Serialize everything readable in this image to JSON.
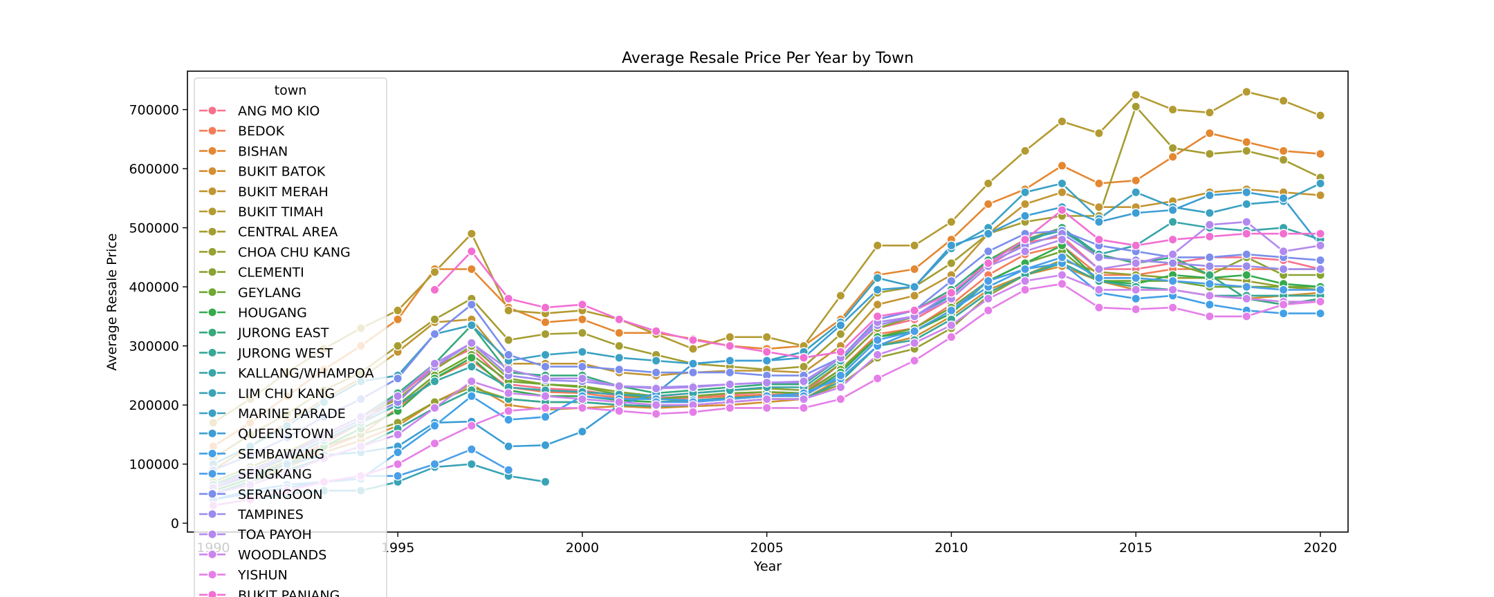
{
  "chart_data": {
    "type": "line",
    "title": "Average Resale Price Per Year by Town",
    "xlabel": "Year",
    "ylabel": "Average Resale Price",
    "xlim": [
      1989.3,
      2020.75
    ],
    "ylim": [
      -15000,
      765000
    ],
    "x_ticks": [
      1990,
      1995,
      2000,
      2005,
      2010,
      2015,
      2020
    ],
    "x_tick_labels": [
      "1990",
      "1995",
      "2000",
      "2005",
      "2010",
      "2015",
      "2020"
    ],
    "y_ticks": [
      0,
      100000,
      200000,
      300000,
      400000,
      500000,
      600000,
      700000
    ],
    "y_tick_labels": [
      "0",
      "100000",
      "200000",
      "300000",
      "400000",
      "500000",
      "600000",
      "700000"
    ],
    "grid": false,
    "legend": {
      "title": "town",
      "placement": "upper-left"
    },
    "x": [
      1990,
      1991,
      1992,
      1993,
      1994,
      1995,
      1996,
      1997,
      1998,
      1999,
      2000,
      2001,
      2002,
      2003,
      2004,
      2005,
      2006,
      2007,
      2008,
      2009,
      2010,
      2011,
      2012,
      2013,
      2014,
      2015,
      2016,
      2017,
      2018,
      2019,
      2020
    ],
    "series": [
      {
        "name": "ANG MO KIO",
        "color": "#f77189",
        "values": [
          60000,
          80000,
          105000,
          135000,
          170000,
          215000,
          265000,
          295000,
          235000,
          228000,
          225000,
          215000,
          212000,
          215000,
          218000,
          222000,
          220000,
          270000,
          330000,
          345000,
          380000,
          435000,
          475000,
          485000,
          430000,
          430000,
          440000,
          450000,
          450000,
          445000,
          430000
        ]
      },
      {
        "name": "BEDOK",
        "color": "#f37c57",
        "values": [
          55000,
          75000,
          100000,
          125000,
          150000,
          195000,
          245000,
          275000,
          230000,
          222000,
          220000,
          212000,
          210000,
          212000,
          215000,
          218000,
          218000,
          260000,
          320000,
          330000,
          370000,
          420000,
          455000,
          470000,
          420000,
          420000,
          430000,
          430000,
          430000,
          430000,
          430000
        ]
      },
      {
        "name": "BISHAN",
        "color": "#e48731",
        "values": [
          130000,
          170000,
          215000,
          260000,
          300000,
          345000,
          430000,
          430000,
          365000,
          340000,
          345000,
          322000,
          322000,
          312000,
          300000,
          295000,
          300000,
          345000,
          420000,
          430000,
          480000,
          540000,
          565000,
          605000,
          575000,
          580000,
          620000,
          660000,
          645000,
          630000,
          625000
        ]
      },
      {
        "name": "BUKIT BATOK",
        "color": "#d28f32",
        "values": [
          50000,
          70000,
          95000,
          120000,
          140000,
          165000,
          205000,
          235000,
          200000,
          192000,
          195000,
          198000,
          195000,
          198000,
          200000,
          205000,
          210000,
          245000,
          300000,
          315000,
          350000,
          395000,
          420000,
          435000,
          410000,
          395000,
          395000,
          385000,
          380000,
          385000,
          390000
        ]
      },
      {
        "name": "BUKIT MERAH",
        "color": "#c19532",
        "values": [
          90000,
          130000,
          170000,
          210000,
          245000,
          290000,
          340000,
          345000,
          270000,
          270000,
          270000,
          255000,
          250000,
          255000,
          258000,
          258000,
          255000,
          300000,
          370000,
          385000,
          420000,
          490000,
          540000,
          560000,
          535000,
          535000,
          545000,
          560000,
          565000,
          560000,
          555000
        ]
      },
      {
        "name": "BUKIT TIMAH",
        "color": "#b39a31",
        "values": [
          170000,
          210000,
          255000,
          295000,
          330000,
          360000,
          425000,
          490000,
          360000,
          355000,
          360000,
          345000,
          320000,
          295000,
          315000,
          315000,
          300000,
          385000,
          470000,
          470000,
          510000,
          575000,
          630000,
          680000,
          660000,
          725000,
          700000,
          695000,
          730000,
          715000,
          690000
        ]
      },
      {
        "name": "CENTRAL AREA",
        "color": "#a59d31",
        "values": [
          110000,
          150000,
          185000,
          225000,
          255000,
          300000,
          345000,
          380000,
          310000,
          320000,
          322000,
          300000,
          285000,
          270000,
          265000,
          260000,
          265000,
          320000,
          390000,
          400000,
          440000,
          490000,
          510000,
          520000,
          520000,
          705000,
          635000,
          625000,
          630000,
          615000,
          585000
        ]
      },
      {
        "name": "CHOA CHU KANG",
        "color": "#97a031",
        "values": [
          60000,
          80000,
          105000,
          130000,
          150000,
          170000,
          205000,
          230000,
          210000,
          205000,
          205000,
          200000,
          198000,
          200000,
          205000,
          210000,
          210000,
          235000,
          280000,
          295000,
          330000,
          385000,
          420000,
          445000,
          425000,
          420000,
          415000,
          415000,
          410000,
          400000,
          395000
        ]
      },
      {
        "name": "CLEMENTI",
        "color": "#88a331",
        "values": [
          70000,
          95000,
          120000,
          150000,
          180000,
          210000,
          260000,
          300000,
          245000,
          235000,
          232000,
          222000,
          215000,
          220000,
          225000,
          228000,
          225000,
          270000,
          330000,
          350000,
          385000,
          445000,
          480000,
          500000,
          450000,
          445000,
          440000,
          420000,
          450000,
          420000,
          420000
        ]
      },
      {
        "name": "GEYLANG",
        "color": "#6fa731",
        "values": [
          60000,
          85000,
          110000,
          140000,
          170000,
          200000,
          250000,
          285000,
          240000,
          235000,
          230000,
          218000,
          210000,
          215000,
          220000,
          222000,
          220000,
          260000,
          315000,
          330000,
          365000,
          410000,
          440000,
          460000,
          410000,
          410000,
          410000,
          400000,
          400000,
          400000,
          400000
        ]
      },
      {
        "name": "HOUGANG",
        "color": "#35ab4e",
        "values": [
          55000,
          75000,
          100000,
          130000,
          160000,
          190000,
          245000,
          280000,
          225000,
          215000,
          215000,
          208000,
          205000,
          208000,
          212000,
          215000,
          215000,
          255000,
          315000,
          325000,
          355000,
          410000,
          440000,
          470000,
          410000,
          405000,
          420000,
          415000,
          420000,
          405000,
          400000
        ]
      },
      {
        "name": "JURONG EAST",
        "color": "#36a97c",
        "values": [
          65000,
          90000,
          115000,
          150000,
          180000,
          220000,
          270000,
          335000,
          255000,
          250000,
          250000,
          232000,
          220000,
          225000,
          230000,
          235000,
          235000,
          280000,
          345000,
          360000,
          395000,
          445000,
          475000,
          500000,
          455000,
          440000,
          450000,
          420000,
          380000,
          370000,
          380000
        ]
      },
      {
        "name": "JURONG WEST",
        "color": "#37a798",
        "values": [
          50000,
          70000,
          90000,
          110000,
          130000,
          160000,
          195000,
          225000,
          210000,
          205000,
          205000,
          200000,
          198000,
          200000,
          205000,
          210000,
          210000,
          240000,
          300000,
          310000,
          345000,
          390000,
          420000,
          440000,
          410000,
          400000,
          395000,
          385000,
          385000,
          385000,
          385000
        ]
      },
      {
        "name": "KALLANG/WHAMPOA",
        "color": "#38a5aa",
        "values": [
          60000,
          85000,
          110000,
          140000,
          170000,
          200000,
          240000,
          265000,
          230000,
          225000,
          222000,
          218000,
          215000,
          220000,
          225000,
          230000,
          230000,
          275000,
          340000,
          350000,
          385000,
          440000,
          480000,
          495000,
          455000,
          470000,
          510000,
          500000,
          495000,
          500000,
          480000
        ]
      },
      {
        "name": "LIM CHU KANG",
        "color": "#39a3b7",
        "values": [
          30000,
          40000,
          50000,
          55000,
          55000,
          70000,
          95000,
          100000,
          80000,
          70000,
          null,
          null,
          null,
          null,
          null,
          null,
          null,
          null,
          null,
          null,
          null,
          null,
          null,
          null,
          null,
          null,
          null,
          null,
          null,
          null,
          null
        ]
      },
      {
        "name": "MARINE PARADE",
        "color": "#3aa1c3",
        "values": [
          100000,
          130000,
          165000,
          205000,
          240000,
          250000,
          320000,
          335000,
          275000,
          285000,
          290000,
          280000,
          275000,
          270000,
          275000,
          275000,
          290000,
          340000,
          415000,
          400000,
          465000,
          500000,
          560000,
          575000,
          515000,
          560000,
          535000,
          525000,
          540000,
          545000,
          575000
        ]
      },
      {
        "name": "QUEENSTOWN",
        "color": "#3c9ed3",
        "values": [
          60000,
          80000,
          100000,
          115000,
          120000,
          130000,
          170000,
          172000,
          130000,
          132000,
          155000,
          200000,
          220000,
          270000,
          275000,
          275000,
          280000,
          335000,
          395000,
          400000,
          470000,
          490000,
          520000,
          535000,
          510000,
          525000,
          530000,
          555000,
          560000,
          550000,
          470000
        ]
      },
      {
        "name": "SEMBAWANG",
        "color": "#42a0e6",
        "values": [
          40000,
          55000,
          65000,
          70000,
          75000,
          120000,
          165000,
          215000,
          175000,
          180000,
          215000,
          210000,
          210000,
          208000,
          210000,
          215000,
          220000,
          245000,
          300000,
          325000,
          360000,
          400000,
          430000,
          440000,
          390000,
          380000,
          385000,
          370000,
          360000,
          355000,
          355000
        ]
      },
      {
        "name": "SENGKANG",
        "color": "#4b9ee7",
        "values": [
          40000,
          50000,
          60000,
          70000,
          80000,
          80000,
          100000,
          125000,
          90000,
          null,
          null,
          null,
          205000,
          205000,
          210000,
          215000,
          215000,
          250000,
          310000,
          325000,
          360000,
          410000,
          430000,
          450000,
          415000,
          415000,
          410000,
          405000,
          400000,
          395000,
          395000
        ]
      },
      {
        "name": "SERANGOON",
        "color": "#7b8eec",
        "values": [
          90000,
          115000,
          145000,
          180000,
          210000,
          245000,
          320000,
          370000,
          285000,
          265000,
          265000,
          260000,
          255000,
          255000,
          255000,
          250000,
          250000,
          280000,
          345000,
          360000,
          410000,
          460000,
          490000,
          495000,
          470000,
          460000,
          450000,
          450000,
          455000,
          450000,
          445000
        ]
      },
      {
        "name": "TAMPINES",
        "color": "#9b8bee",
        "values": [
          60000,
          90000,
          115000,
          145000,
          175000,
          205000,
          265000,
          305000,
          250000,
          242000,
          240000,
          232000,
          230000,
          232000,
          235000,
          238000,
          238000,
          280000,
          335000,
          350000,
          390000,
          440000,
          470000,
          490000,
          450000,
          445000,
          440000,
          435000,
          435000,
          430000,
          430000
        ]
      },
      {
        "name": "TOA PAYOH",
        "color": "#b389ef",
        "values": [
          60000,
          85000,
          115000,
          150000,
          180000,
          215000,
          270000,
          305000,
          260000,
          245000,
          245000,
          232000,
          228000,
          230000,
          235000,
          238000,
          240000,
          280000,
          340000,
          350000,
          380000,
          435000,
          460000,
          480000,
          430000,
          440000,
          455000,
          505000,
          510000,
          460000,
          470000
        ]
      },
      {
        "name": "WOODLANDS",
        "color": "#cc85ee",
        "values": [
          50000,
          65000,
          85000,
          110000,
          130000,
          150000,
          195000,
          240000,
          220000,
          215000,
          210000,
          205000,
          200000,
          200000,
          205000,
          210000,
          210000,
          230000,
          285000,
          305000,
          335000,
          380000,
          410000,
          420000,
          395000,
          395000,
          395000,
          385000,
          380000,
          375000,
          375000
        ]
      },
      {
        "name": "YISHUN",
        "color": "#e57ee8",
        "values": [
          30000,
          40000,
          55000,
          70000,
          80000,
          100000,
          135000,
          165000,
          190000,
          195000,
          195000,
          190000,
          185000,
          188000,
          195000,
          195000,
          195000,
          210000,
          245000,
          275000,
          315000,
          360000,
          395000,
          405000,
          365000,
          362000,
          365000,
          350000,
          350000,
          370000,
          375000
        ]
      },
      {
        "name": "BUKIT PANJANG",
        "color": "#f26fd2",
        "values": [
          null,
          null,
          null,
          null,
          null,
          null,
          395000,
          460000,
          380000,
          365000,
          370000,
          345000,
          325000,
          310000,
          300000,
          290000,
          280000,
          290000,
          350000,
          360000,
          390000,
          440000,
          480000,
          530000,
          480000,
          470000,
          480000,
          485000,
          490000,
          490000,
          490000
        ]
      }
    ]
  }
}
